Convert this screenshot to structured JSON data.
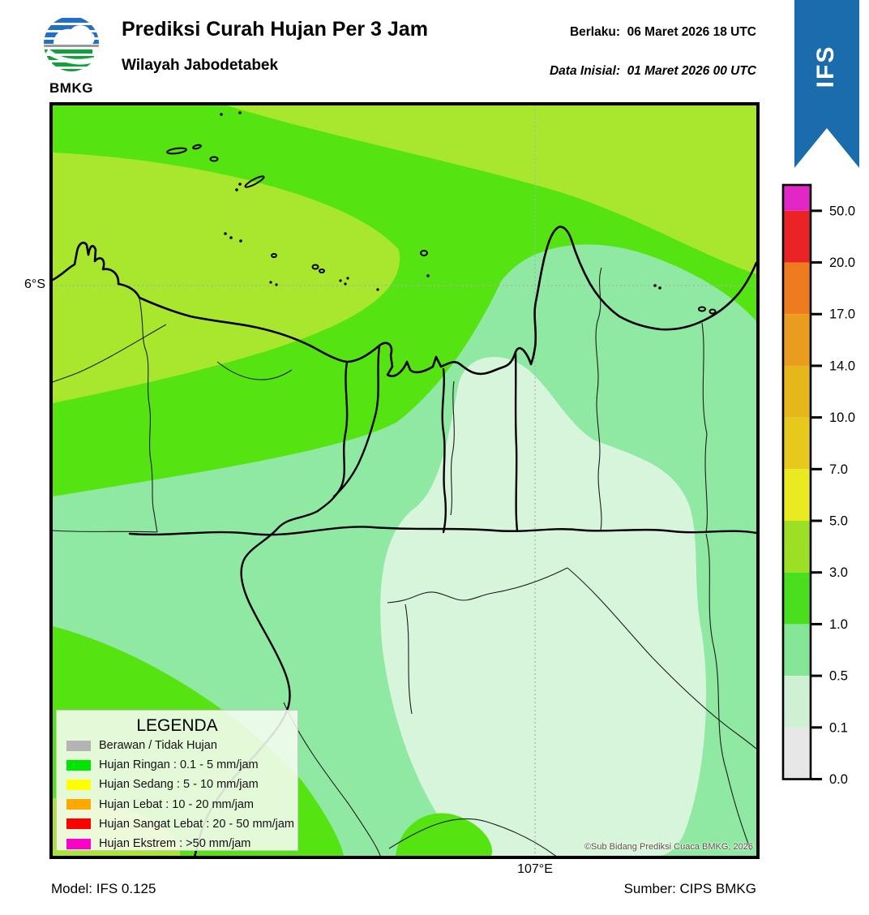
{
  "header": {
    "title": "Prediksi Curah Hujan Per 3 Jam",
    "subtitle": "Wilayah Jabodetabek",
    "valid_label": "Berlaku:",
    "valid_value": "06 Maret 2026 18 UTC",
    "init_label": "Data Inisial:",
    "init_value": "01 Maret 2026 00 UTC",
    "logo_text": "BMKG",
    "ribbon_text": "IFS",
    "ribbon_color": "#1a6cad"
  },
  "map": {
    "lat_label": "6°S",
    "lon_label": "107°E",
    "copyright": "©Sub Bidang Prediksi Cuaca BMKG, 2026"
  },
  "map_colors": {
    "base_green_1_3": "#55e312",
    "yellow_green_3_5": "#a9e72f",
    "mint_05_1": "#8fe9a2",
    "pale_01_05": "#d7f5da"
  },
  "colorbar": {
    "ticks": [
      "50.0",
      "20.0",
      "17.0",
      "14.0",
      "10.0",
      "7.0",
      "5.0",
      "3.0",
      "1.0",
      "0.5",
      "0.1",
      "0.0"
    ],
    "segment_colors_top_to_bottom": [
      "#e326c6",
      "#ea2426",
      "#ee7c1e",
      "#e99c1e",
      "#e5b71a",
      "#e7c91d",
      "#eaea22",
      "#9cdf24",
      "#49df1f",
      "#85e698",
      "#cff0d2",
      "#e7e7e7"
    ]
  },
  "legend": {
    "title": "LEGENDA",
    "items": [
      {
        "label": "Berawan / Tidak Hujan",
        "color": "#b4b4b4"
      },
      {
        "label": "Hujan Ringan : 0.1 - 5 mm/jam",
        "color": "#00e400"
      },
      {
        "label": "Hujan Sedang : 5 - 10 mm/jam",
        "color": "#ffff00"
      },
      {
        "label": "Hujan Lebat : 10 - 20 mm/jam",
        "color": "#ffa800"
      },
      {
        "label": "Hujan Sangat Lebat : 20 - 50 mm/jam",
        "color": "#ff0000"
      },
      {
        "label": "Hujan Ekstrem : >50 mm/jam",
        "color": "#ff00c8"
      }
    ]
  },
  "footer": {
    "model": "Model: IFS 0.125",
    "source": "Sumber: CIPS BMKG"
  }
}
